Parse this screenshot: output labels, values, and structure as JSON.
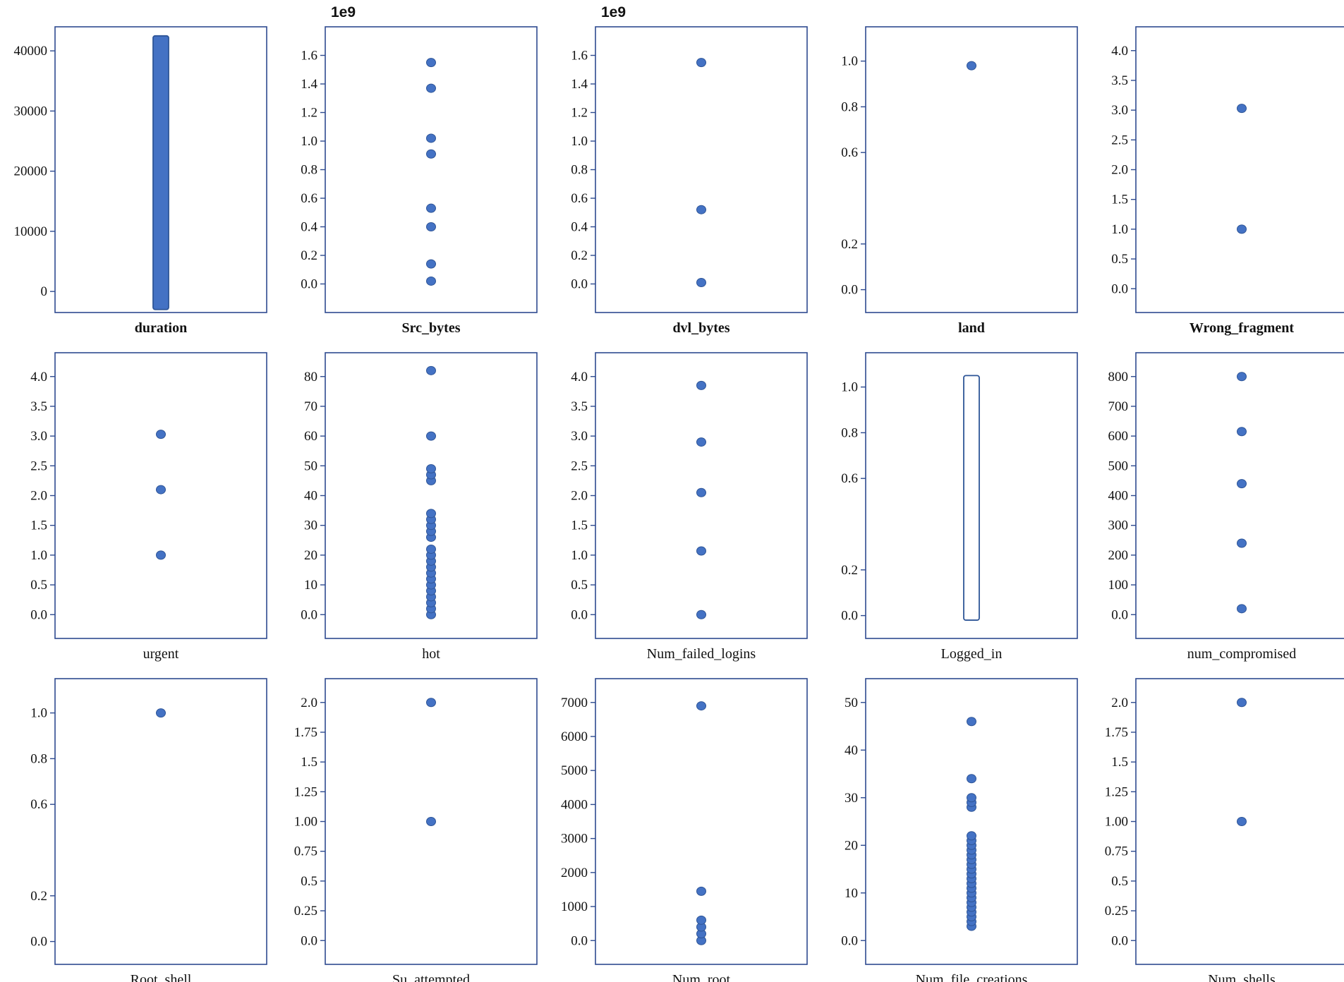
{
  "chart_data": [
    {
      "type": "scatter",
      "xlabel": "duration",
      "xlabel_bold": true,
      "yticks": [
        "0",
        "10000",
        "20000",
        "30000",
        "40000"
      ],
      "ylim": [
        -3500,
        44000
      ],
      "values": [],
      "range": [
        -3000,
        42500
      ],
      "offset": ""
    },
    {
      "type": "scatter",
      "xlabel": "Src_bytes",
      "xlabel_bold": true,
      "yticks": [
        "0.0",
        "0.2",
        "0.4",
        "0.6",
        "0.8",
        "1.0",
        "1.2",
        "1.4",
        "1.6"
      ],
      "ylim": [
        -0.2,
        1.8
      ],
      "values": [
        0.02,
        0.14,
        0.4,
        0.53,
        0.91,
        1.02,
        1.37,
        1.55
      ],
      "offset": "1e9"
    },
    {
      "type": "scatter",
      "xlabel": "dvl_bytes",
      "xlabel_bold": true,
      "yticks": [
        "0.0",
        "0.2",
        "0.4",
        "0.6",
        "0.8",
        "1.0",
        "1.2",
        "1.4",
        "1.6"
      ],
      "ylim": [
        -0.2,
        1.8
      ],
      "values": [
        0.01,
        0.52,
        1.55
      ],
      "offset": "1e9"
    },
    {
      "type": "scatter",
      "xlabel": "land",
      "xlabel_bold": true,
      "yticks": [
        "0.0",
        "0.2",
        "0.6",
        "0.8",
        "1.0"
      ],
      "ylim": [
        -0.1,
        1.15
      ],
      "values": [
        0.98
      ],
      "offset": ""
    },
    {
      "type": "scatter",
      "xlabel": "Wrong_fragment",
      "xlabel_bold": true,
      "yticks": [
        "0.0",
        "0.5",
        "1.0",
        "1.5",
        "2.0",
        "2.5",
        "3.0",
        "3.5",
        "4.0"
      ],
      "ylim": [
        -0.4,
        4.4
      ],
      "values": [
        1.0,
        3.03
      ],
      "offset": ""
    },
    {
      "type": "scatter",
      "xlabel": "urgent",
      "xlabel_bold": false,
      "yticks": [
        "0.0",
        "0.5",
        "1.0",
        "1.5",
        "2.0",
        "2.5",
        "3.0",
        "3.5",
        "4.0"
      ],
      "ylim": [
        -0.4,
        4.4
      ],
      "values": [
        1.0,
        2.1,
        3.03
      ],
      "offset": ""
    },
    {
      "type": "scatter",
      "xlabel": "hot",
      "xlabel_bold": false,
      "yticks": [
        "0.0",
        "10",
        "20",
        "30",
        "40",
        "50",
        "60",
        "70",
        "80"
      ],
      "ylim": [
        -8,
        88
      ],
      "values": [
        0,
        2,
        4,
        6,
        8,
        10,
        12,
        14,
        16,
        18,
        20,
        22,
        26,
        28,
        30,
        32,
        34,
        45,
        47,
        49,
        60,
        82
      ],
      "offset": ""
    },
    {
      "type": "scatter",
      "xlabel": "Num_failed_logins",
      "xlabel_bold": false,
      "yticks": [
        "0.0",
        "0.5",
        "1.0",
        "1.5",
        "2.0",
        "2.5",
        "3.0",
        "3.5",
        "4.0"
      ],
      "ylim": [
        -0.4,
        4.4
      ],
      "values": [
        0.0,
        1.07,
        2.05,
        2.9,
        3.85
      ],
      "offset": ""
    },
    {
      "type": "scatter",
      "xlabel": "Logged_in",
      "xlabel_bold": false,
      "yticks": [
        "0.0",
        "0.2",
        "0.6",
        "0.8",
        "1.0"
      ],
      "ylim": [
        -0.1,
        1.15
      ],
      "values": [],
      "range": [
        -0.02,
        1.05
      ],
      "hollow": true,
      "offset": ""
    },
    {
      "type": "scatter",
      "xlabel": "num_compromised",
      "xlabel_bold": false,
      "yticks": [
        "0.0",
        "100",
        "200",
        "300",
        "400",
        "500",
        "600",
        "700",
        "800"
      ],
      "ylim": [
        -80,
        880
      ],
      "values": [
        20,
        240,
        440,
        615,
        800
      ],
      "offset": ""
    },
    {
      "type": "scatter",
      "xlabel": "Root_shell",
      "xlabel_bold": false,
      "yticks": [
        "0.0",
        "0.2",
        "0.6",
        "0.8",
        "1.0"
      ],
      "ylim": [
        -0.1,
        1.15
      ],
      "values": [
        1.0
      ],
      "offset": ""
    },
    {
      "type": "scatter",
      "xlabel": "Su_attempted",
      "xlabel_bold": false,
      "yticks": [
        "0.0",
        "0.25",
        "0.5",
        "0.75",
        "1.00",
        "1.25",
        "1.5",
        "1.75",
        "2.0"
      ],
      "ylim": [
        -0.2,
        2.2
      ],
      "values": [
        1.0,
        2.0
      ],
      "offset": ""
    },
    {
      "type": "scatter",
      "xlabel": "Num_root",
      "xlabel_bold": false,
      "yticks": [
        "0.0",
        "1000",
        "2000",
        "3000",
        "4000",
        "5000",
        "6000",
        "7000"
      ],
      "ylim": [
        -700,
        7700
      ],
      "values": [
        0,
        200,
        400,
        600,
        1450,
        6900
      ],
      "offset": ""
    },
    {
      "type": "scatter",
      "xlabel": "Num_file_creations",
      "xlabel_bold": false,
      "yticks": [
        "0.0",
        "10",
        "20",
        "30",
        "40",
        "50"
      ],
      "ylim": [
        -5,
        55
      ],
      "values": [
        3,
        4,
        5,
        6,
        7,
        8,
        9,
        10,
        11,
        12,
        13,
        14,
        15,
        16,
        17,
        18,
        19,
        20,
        21,
        22,
        28,
        29,
        30,
        34,
        46
      ],
      "offset": ""
    },
    {
      "type": "scatter",
      "xlabel": "Num_shells",
      "xlabel_bold": false,
      "yticks": [
        "0.0",
        "0.25",
        "0.5",
        "0.75",
        "1.00",
        "1.25",
        "1.5",
        "1.75",
        "2.0"
      ],
      "ylim": [
        -0.2,
        2.2
      ],
      "values": [
        1.0,
        2.0
      ],
      "offset": ""
    }
  ],
  "colors": {
    "marker": "#4472c4",
    "marker_edge": "#2e5597",
    "frame": "#2e4a8f",
    "text": "#111111"
  }
}
